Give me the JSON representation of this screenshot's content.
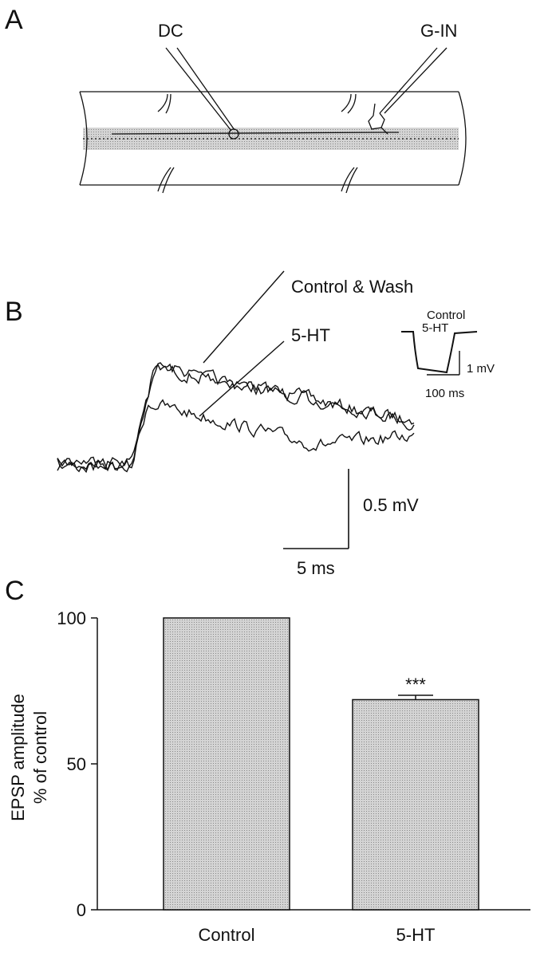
{
  "panel_a": {
    "label": "A",
    "electrode_labels": [
      "DC",
      "G-IN"
    ]
  },
  "panel_b": {
    "label": "B",
    "trace_labels": [
      "Control & Wash",
      "5-HT"
    ],
    "inset_labels": [
      "Control",
      "5-HT"
    ],
    "inset_scale_labels": [
      "1 mV",
      "100 ms"
    ],
    "scale_labels": [
      "0.5 mV",
      "5 ms"
    ]
  },
  "chart_data": {
    "type": "bar",
    "panel_label": "C",
    "ylabel": [
      "EPSP amplitude",
      "% of control"
    ],
    "categories": [
      "Control",
      "5-HT"
    ],
    "values": [
      100,
      72
    ],
    "errors": [
      null,
      1.5
    ],
    "significance": [
      null,
      "***"
    ],
    "color": "#c8c8c8",
    "ylim": [
      0,
      100
    ],
    "yticks": [
      0,
      50,
      100
    ]
  }
}
